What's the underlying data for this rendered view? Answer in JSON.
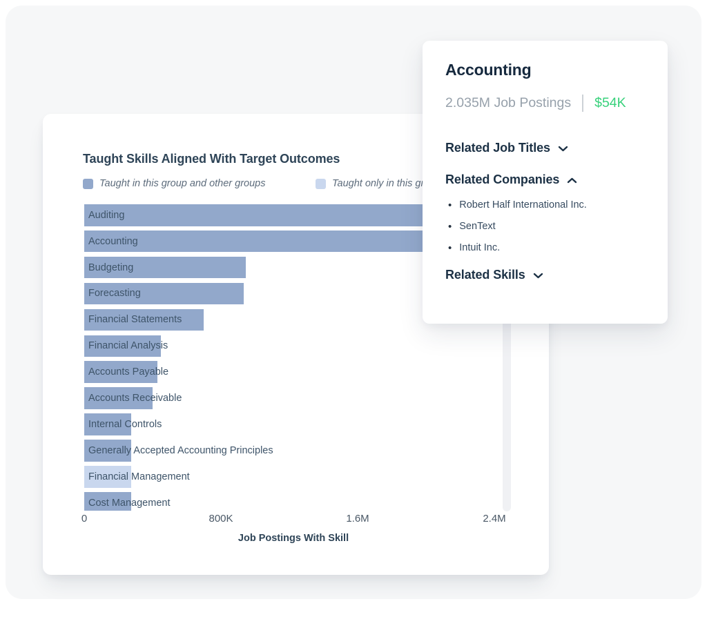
{
  "background": {
    "panel_color": "#f6f7f8",
    "page_color": "#ffffff"
  },
  "colors": {
    "bar_taught_both": "#92a8cb",
    "bar_taught_only": "#c9d7ee",
    "title_navy": "#2e4457",
    "salary_green": "#38d17b",
    "muted_gray": "#97a1ab"
  },
  "chart_card": {
    "title": "Taught Skills Aligned With Target Outcomes",
    "legend": {
      "both_label": "Taught in this group and other groups",
      "only_label": "Taught only in this group"
    },
    "x_axis_title": "Job Postings With Skill"
  },
  "chart_data": {
    "type": "bar",
    "orientation": "horizontal",
    "title": "Taught Skills Aligned With Target Outcomes",
    "xlabel": "Job Postings With Skill",
    "xlim": [
      0,
      2480000
    ],
    "x_ticks": [
      0,
      800000,
      1600000,
      2400000
    ],
    "x_tick_labels": [
      "0",
      "800K",
      "1.6M",
      "2.4M"
    ],
    "legend_entries": [
      "Taught in this group and other groups",
      "Taught only in this group"
    ],
    "legend_position": "top",
    "grid": false,
    "categories": [
      "Auditing",
      "Accounting",
      "Budgeting",
      "Forecasting",
      "Financial Statements",
      "Financial Analysis",
      "Accounts Payable",
      "Accounts Receivable",
      "Internal Controls",
      "Generally Accepted Accounting Principles",
      "Financial Management",
      "Cost Management"
    ],
    "values": [
      2100000,
      2035000,
      945000,
      935000,
      700000,
      450000,
      430000,
      400000,
      275000,
      275000,
      275000,
      275000
    ],
    "series_membership": [
      "both",
      "both",
      "both",
      "both",
      "both",
      "both",
      "both",
      "both",
      "both",
      "both",
      "only",
      "both"
    ]
  },
  "popup": {
    "title": "Accounting",
    "stats": {
      "job_postings": "2.035M Job Postings",
      "median_salary": "$54K"
    },
    "sections": [
      {
        "id": "related-job-titles",
        "label": "Related Job Titles",
        "expanded": false,
        "items": []
      },
      {
        "id": "related-companies",
        "label": "Related Companies",
        "expanded": true,
        "items": [
          "Robert Half International Inc.",
          "SenText",
          "Intuit Inc."
        ]
      },
      {
        "id": "related-skills",
        "label": "Related Skills",
        "expanded": false,
        "items": []
      }
    ]
  }
}
